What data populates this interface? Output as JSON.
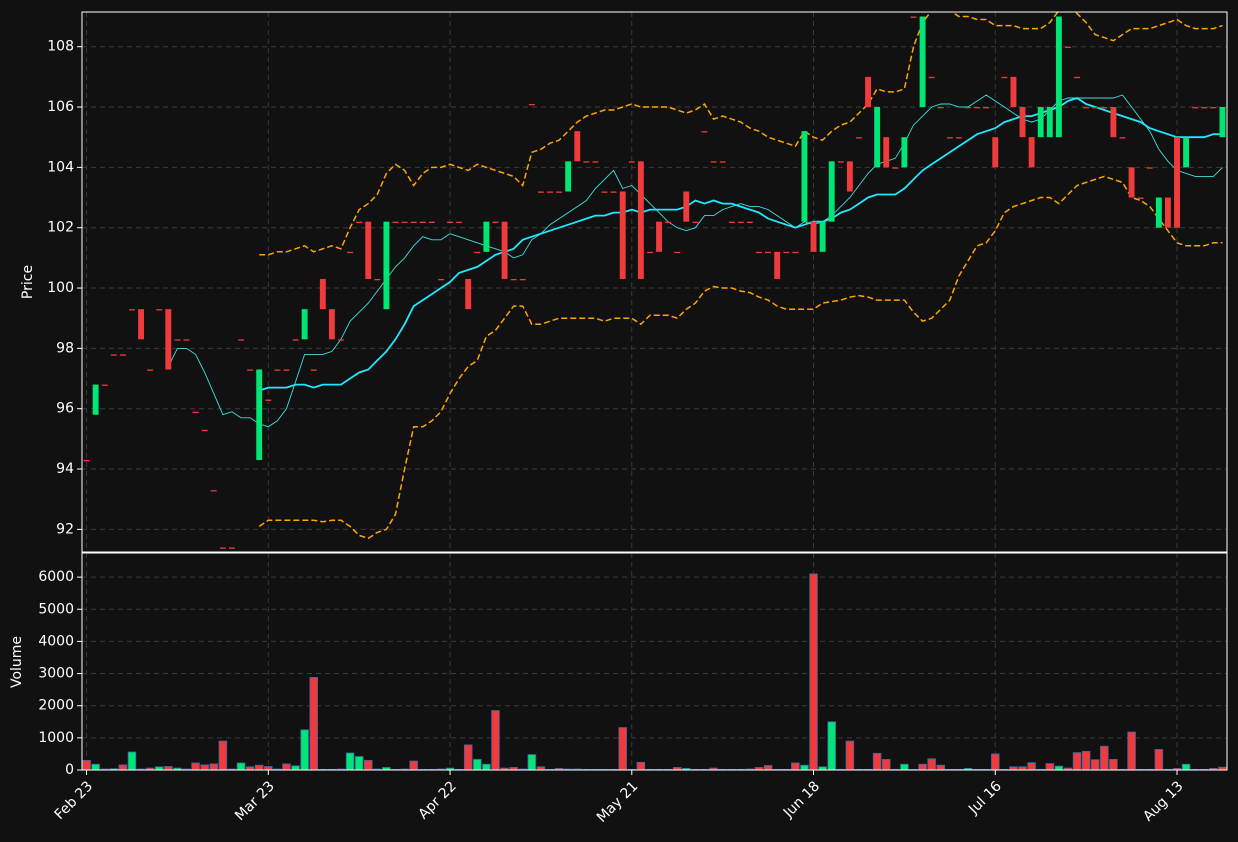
{
  "chart_data": [
    {
      "type": "candlestick",
      "ylabel": "Price",
      "ylim": [
        91.25,
        109.15
      ],
      "yticks": [
        92,
        94,
        96,
        98,
        100,
        102,
        104,
        106,
        108
      ],
      "grid": true,
      "xlim": [
        -0.5,
        125.5
      ],
      "up_color": "#00e676",
      "down_color": "#ef3b3b",
      "open": [
        94.3,
        95.8,
        96.8,
        97.8,
        97.8,
        99.3,
        99.3,
        97.3,
        99.3,
        99.3,
        98.3,
        98.3,
        95.9,
        95.3,
        93.3,
        91.4,
        91.4,
        98.3,
        97.3,
        94.3,
        96.3,
        97.3,
        97.3,
        98.3,
        98.3,
        97.3,
        100.3,
        99.3,
        98.3,
        101.2,
        102.2,
        102.2,
        100.3,
        99.3,
        102.2,
        102.2,
        102.2,
        102.2,
        102.2,
        100.3,
        102.2,
        102.2,
        100.3,
        101.2,
        101.2,
        102.2,
        102.2,
        100.3,
        100.3,
        106.1,
        103.2,
        103.2,
        103.2,
        103.2,
        105.2,
        104.2,
        104.2,
        103.2,
        103.2,
        103.2,
        104.2,
        104.2,
        101.2,
        102.2,
        102.2,
        101.2,
        103.2,
        102.2,
        105.2,
        104.2,
        104.2,
        102.2,
        102.2,
        102.2,
        101.2,
        101.2,
        101.2,
        101.2,
        101.2,
        102.2,
        102.2,
        101.2,
        102.2,
        104.2,
        104.2,
        105.0,
        107.0,
        104.0,
        105.0,
        104.0,
        104.0,
        109.0,
        106.0,
        107.0,
        106.0,
        105.0,
        105.0,
        106.0,
        106.0,
        106.0,
        105.0,
        107.0,
        107.0,
        106.0,
        105.0,
        105.0,
        105.0,
        105.0,
        108.0,
        107.0,
        106.0,
        106.0,
        106.0,
        106.0,
        105.0,
        104.0,
        103.0,
        104.0,
        102.0,
        103.0,
        105.0,
        104.0,
        106.0,
        106.0,
        106.0,
        105.0
      ],
      "close": [
        94.3,
        96.8,
        96.8,
        97.8,
        97.8,
        99.3,
        98.3,
        97.3,
        99.3,
        97.3,
        98.3,
        98.3,
        95.9,
        95.3,
        93.3,
        91.4,
        91.4,
        98.3,
        97.3,
        97.3,
        96.3,
        97.3,
        97.3,
        98.3,
        99.3,
        97.3,
        99.3,
        98.3,
        98.3,
        101.2,
        102.2,
        100.3,
        100.3,
        102.2,
        102.2,
        102.2,
        102.2,
        102.2,
        102.2,
        100.3,
        102.2,
        102.2,
        99.3,
        101.2,
        102.2,
        102.2,
        100.3,
        100.3,
        100.3,
        106.1,
        103.2,
        103.2,
        103.2,
        104.2,
        104.2,
        104.2,
        104.2,
        103.2,
        103.2,
        100.3,
        104.2,
        100.3,
        101.2,
        101.2,
        102.2,
        101.2,
        102.2,
        102.2,
        105.2,
        104.2,
        104.2,
        102.2,
        102.2,
        102.2,
        101.2,
        101.2,
        100.3,
        101.2,
        101.2,
        105.2,
        101.2,
        102.2,
        104.2,
        104.2,
        103.2,
        105.0,
        106.0,
        106.0,
        104.0,
        104.0,
        105.0,
        109.0,
        109.0,
        107.0,
        106.0,
        105.0,
        105.0,
        106.0,
        106.0,
        106.0,
        104.0,
        107.0,
        106.0,
        105.0,
        104.0,
        106.0,
        106.0,
        109.0,
        108.0,
        107.0,
        106.0,
        106.0,
        106.0,
        105.0,
        105.0,
        103.0,
        103.0,
        104.0,
        103.0,
        102.0,
        102.0,
        105.0,
        106.0,
        106.0,
        106.0,
        106.0
      ],
      "lines": [
        {
          "color": "#3fe0e0",
          "linewidth": 0.9,
          "linestyle": "solid",
          "values": [
            null,
            null,
            null,
            null,
            null,
            null,
            null,
            null,
            null,
            97.4,
            98.0,
            98.0,
            97.8,
            97.2,
            96.5,
            95.8,
            95.9,
            95.7,
            95.7,
            95.5,
            95.4,
            95.6,
            96.0,
            96.9,
            97.8,
            97.8,
            97.8,
            97.9,
            98.3,
            98.9,
            99.2,
            99.5,
            99.9,
            100.3,
            100.7,
            101.0,
            101.4,
            101.7,
            101.6,
            101.6,
            101.8,
            101.7,
            101.6,
            101.5,
            101.4,
            101.3,
            101.2,
            101.0,
            101.1,
            101.6,
            101.8,
            102.1,
            102.3,
            102.5,
            102.7,
            102.9,
            103.3,
            103.6,
            103.9,
            103.3,
            103.4,
            103.1,
            102.8,
            102.5,
            102.2,
            102.0,
            101.9,
            102.0,
            102.4,
            102.4,
            102.6,
            102.7,
            102.8,
            102.7,
            102.7,
            102.6,
            102.4,
            102.2,
            102.0,
            102.2,
            102.1,
            102.2,
            102.4,
            102.7,
            103.0,
            103.4,
            103.8,
            104.1,
            104.2,
            104.3,
            104.8,
            105.4,
            105.7,
            106.0,
            106.1,
            106.1,
            106.0,
            106.0,
            106.2,
            106.4,
            106.2,
            106.0,
            105.8,
            105.6,
            105.5,
            105.6,
            105.9,
            106.2,
            106.3,
            106.3,
            106.3,
            106.3,
            106.3,
            106.3,
            106.4,
            106.0,
            105.6,
            105.2,
            104.6,
            104.2,
            103.9,
            103.8,
            103.7,
            103.7,
            103.7,
            104.0
          ]
        },
        {
          "color": "#22e8ff",
          "linewidth": 1.8,
          "linestyle": "solid",
          "values": [
            null,
            null,
            null,
            null,
            null,
            null,
            null,
            null,
            null,
            null,
            null,
            null,
            null,
            null,
            null,
            null,
            null,
            null,
            null,
            96.6,
            96.7,
            96.7,
            96.7,
            96.8,
            96.8,
            96.7,
            96.8,
            96.8,
            96.8,
            97.0,
            97.2,
            97.3,
            97.6,
            97.9,
            98.3,
            98.8,
            99.4,
            99.6,
            99.8,
            100.0,
            100.2,
            100.5,
            100.6,
            100.7,
            100.9,
            101.1,
            101.2,
            101.3,
            101.6,
            101.7,
            101.8,
            101.9,
            102.0,
            102.1,
            102.2,
            102.3,
            102.4,
            102.4,
            102.5,
            102.5,
            102.6,
            102.5,
            102.6,
            102.6,
            102.6,
            102.6,
            102.7,
            102.9,
            102.8,
            102.9,
            102.8,
            102.8,
            102.7,
            102.6,
            102.5,
            102.3,
            102.2,
            102.1,
            102.0,
            102.1,
            102.2,
            102.2,
            102.3,
            102.5,
            102.6,
            102.8,
            103.0,
            103.1,
            103.1,
            103.1,
            103.3,
            103.6,
            103.9,
            104.1,
            104.3,
            104.5,
            104.7,
            104.9,
            105.1,
            105.2,
            105.3,
            105.5,
            105.6,
            105.7,
            105.7,
            105.8,
            105.9,
            106.0,
            106.2,
            106.3,
            106.1,
            106.0,
            105.9,
            105.8,
            105.7,
            105.6,
            105.5,
            105.3,
            105.2,
            105.1,
            105.0,
            105.0,
            105.0,
            105.0,
            105.1,
            105.1
          ]
        },
        {
          "color": "#ffa500",
          "linewidth": 1.5,
          "linestyle": "dashed",
          "values": [
            null,
            null,
            null,
            null,
            null,
            null,
            null,
            null,
            null,
            null,
            null,
            null,
            null,
            null,
            null,
            null,
            null,
            null,
            null,
            101.1,
            101.1,
            101.2,
            101.2,
            101.3,
            101.4,
            101.2,
            101.3,
            101.4,
            101.3,
            102.0,
            102.6,
            102.8,
            103.1,
            103.8,
            104.1,
            103.9,
            103.4,
            103.8,
            104.0,
            104.0,
            104.1,
            104.0,
            103.9,
            104.1,
            104.0,
            103.9,
            103.8,
            103.7,
            103.4,
            104.5,
            104.6,
            104.8,
            104.9,
            105.2,
            105.5,
            105.7,
            105.8,
            105.9,
            105.9,
            106.0,
            106.1,
            106.0,
            106.0,
            106.0,
            106.0,
            105.9,
            105.8,
            105.9,
            106.1,
            105.6,
            105.7,
            105.6,
            105.5,
            105.3,
            105.2,
            105.0,
            104.9,
            104.8,
            104.7,
            105.2,
            105.0,
            104.9,
            105.2,
            105.4,
            105.5,
            105.8,
            106.1,
            106.6,
            106.5,
            106.5,
            106.6,
            108.0,
            108.8,
            109.2,
            109.3,
            109.2,
            109.0,
            109.0,
            108.9,
            108.9,
            108.7,
            108.7,
            108.7,
            108.6,
            108.6,
            108.6,
            108.8,
            109.2,
            109.3,
            109.1,
            108.8,
            108.4,
            108.3,
            108.2,
            108.4,
            108.6,
            108.6,
            108.6,
            108.7,
            108.8,
            108.9,
            108.7,
            108.6,
            108.6,
            108.6,
            108.7
          ]
        },
        {
          "color": "#ffa500",
          "linewidth": 1.5,
          "linestyle": "dashed",
          "values": [
            null,
            null,
            null,
            null,
            null,
            null,
            null,
            null,
            null,
            null,
            null,
            null,
            null,
            null,
            null,
            null,
            null,
            null,
            null,
            92.1,
            92.3,
            92.3,
            92.3,
            92.3,
            92.3,
            92.3,
            92.25,
            92.3,
            92.3,
            92.1,
            91.8,
            91.7,
            91.9,
            92.0,
            92.5,
            94.0,
            95.4,
            95.4,
            95.6,
            95.9,
            96.5,
            97.0,
            97.4,
            97.6,
            98.4,
            98.6,
            99.0,
            99.4,
            99.4,
            98.8,
            98.8,
            98.9,
            99.0,
            99.0,
            99.0,
            99.0,
            99.0,
            98.9,
            99.0,
            99.0,
            99.0,
            98.8,
            99.1,
            99.1,
            99.1,
            99.0,
            99.3,
            99.5,
            99.9,
            100.05,
            100.0,
            100.0,
            99.9,
            99.85,
            99.7,
            99.6,
            99.4,
            99.3,
            99.3,
            99.3,
            99.3,
            99.5,
            99.55,
            99.6,
            99.7,
            99.75,
            99.7,
            99.6,
            99.6,
            99.6,
            99.6,
            99.2,
            98.9,
            99.0,
            99.3,
            99.6,
            100.4,
            100.9,
            101.4,
            101.5,
            101.9,
            102.5,
            102.7,
            102.8,
            102.9,
            103.0,
            103.0,
            102.8,
            103.1,
            103.4,
            103.5,
            103.6,
            103.7,
            103.6,
            103.5,
            103.0,
            102.9,
            102.7,
            102.3,
            101.9,
            101.5,
            101.4,
            101.4,
            101.4,
            101.5,
            101.5
          ]
        }
      ]
    },
    {
      "type": "bar",
      "ylabel": "Volume",
      "ylim": [
        0,
        6750
      ],
      "yticks": [
        0,
        1000,
        2000,
        3000,
        4000,
        5000,
        6000
      ],
      "grid": true,
      "xlim": [
        -0.5,
        125.5
      ],
      "edgecolor": "#3f64a8",
      "xticks": [
        {
          "value": 0,
          "label": "Feb 23"
        },
        {
          "value": 20,
          "label": "Mar 23"
        },
        {
          "value": 40,
          "label": "Apr 22"
        },
        {
          "value": 60,
          "label": "May 21"
        },
        {
          "value": 80,
          "label": "Jun 18"
        },
        {
          "value": 100,
          "label": "Jul 16"
        },
        {
          "value": 120,
          "label": "Aug 13"
        }
      ],
      "values": [
        300,
        180,
        30,
        40,
        160,
        560,
        30,
        60,
        100,
        110,
        60,
        30,
        220,
        160,
        190,
        900,
        30,
        220,
        100,
        150,
        110,
        30,
        190,
        130,
        1250,
        2880,
        20,
        20,
        30,
        530,
        420,
        300,
        30,
        80,
        20,
        30,
        280,
        20,
        20,
        30,
        60,
        20,
        780,
        330,
        180,
        1850,
        60,
        80,
        30,
        480,
        100,
        20,
        50,
        30,
        30,
        20,
        20,
        20,
        20,
        1320,
        20,
        240,
        20,
        20,
        20,
        80,
        50,
        20,
        20,
        60,
        20,
        20,
        20,
        30,
        80,
        140,
        20,
        20,
        220,
        150,
        6100,
        100,
        1500,
        20,
        900,
        20,
        20,
        520,
        330,
        20,
        180,
        20,
        180,
        350,
        150,
        20,
        20,
        50,
        20,
        20,
        500,
        20,
        100,
        100,
        230,
        20,
        200,
        120,
        60,
        540,
        580,
        320,
        740,
        330,
        20,
        1180,
        20,
        20,
        640,
        20,
        50,
        180,
        20,
        20,
        50,
        90
      ]
    }
  ]
}
